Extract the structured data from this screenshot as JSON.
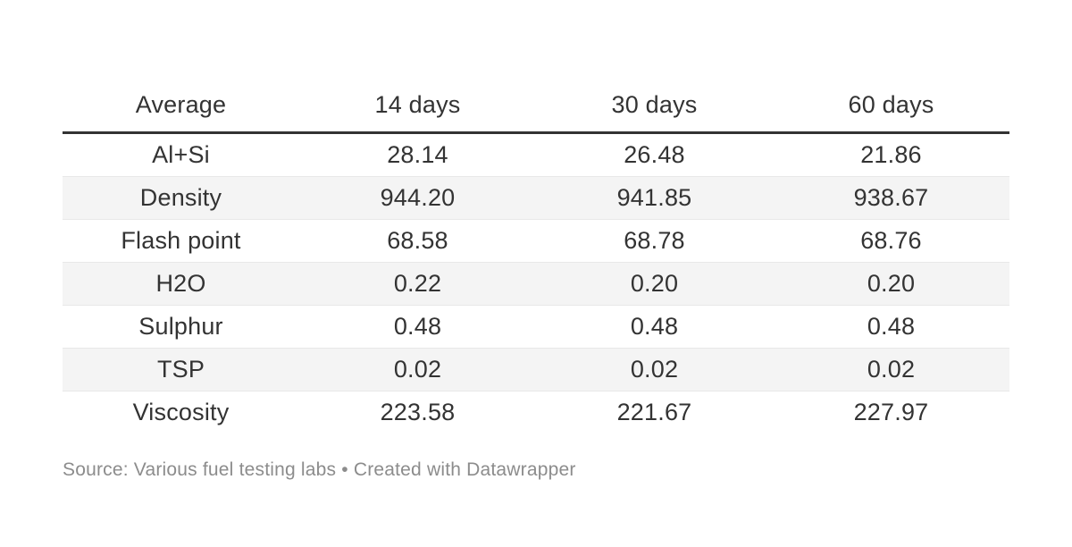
{
  "chart_data": {
    "type": "table",
    "columns": [
      "Average",
      "14 days",
      "30 days",
      "60 days"
    ],
    "rows": [
      {
        "label": "Al+Si",
        "values": [
          "28.14",
          "26.48",
          "21.86"
        ]
      },
      {
        "label": "Density",
        "values": [
          "944.20",
          "941.85",
          "938.67"
        ]
      },
      {
        "label": "Flash point",
        "values": [
          "68.58",
          "68.78",
          "68.76"
        ]
      },
      {
        "label": "H2O",
        "values": [
          "0.22",
          "0.20",
          "0.20"
        ]
      },
      {
        "label": "Sulphur",
        "values": [
          "0.48",
          "0.48",
          "0.48"
        ]
      },
      {
        "label": "TSP",
        "values": [
          "0.02",
          "0.02",
          "0.02"
        ]
      },
      {
        "label": "Viscosity",
        "values": [
          "223.58",
          "221.67",
          "227.97"
        ]
      }
    ],
    "layout_hints": {
      "striped_rows": true,
      "stripe_pattern": "even rows shaded",
      "header_rule": "thick dark line under header",
      "cell_alignment": "center",
      "grid": "horizontal row separators only"
    }
  },
  "footer": {
    "text": "Source: Various fuel testing labs • Created with Datawrapper"
  },
  "colors": {
    "text": "#333333",
    "stripe": "#f4f4f4",
    "row_border": "#e8e8e8",
    "header_rule": "#333333",
    "footer_text": "#8c8c8c",
    "background": "#ffffff"
  }
}
